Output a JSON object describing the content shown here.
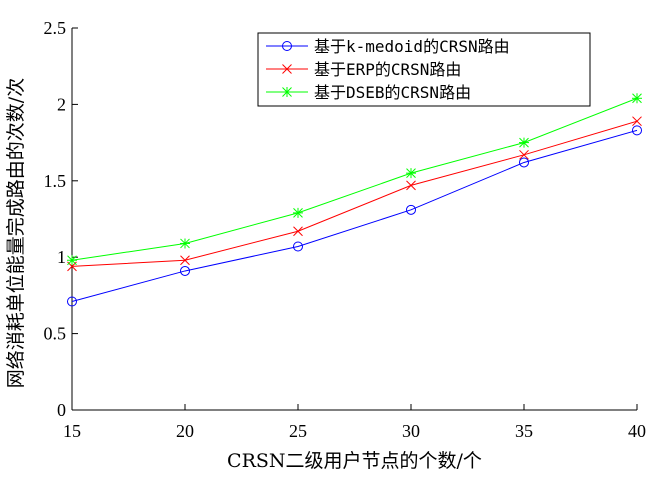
{
  "chart_data": {
    "type": "line",
    "xlabel": "CRSN二级用户节点的个数/个",
    "ylabel": "网络消耗单位能量完成路由的次数/次",
    "xlim": [
      15,
      40
    ],
    "ylim": [
      0,
      2.5
    ],
    "x": [
      15,
      20,
      25,
      30,
      35,
      40
    ],
    "x_ticks": [
      "15",
      "20",
      "25",
      "30",
      "35",
      "40"
    ],
    "y_ticks": [
      {
        "value": 0,
        "label": "0"
      },
      {
        "value": 0.5,
        "label": "0.5"
      },
      {
        "value": 1,
        "label": "1"
      },
      {
        "value": 1.5,
        "label": "1.5"
      },
      {
        "value": 2,
        "label": "2"
      },
      {
        "value": 2.5,
        "label": "2.5"
      }
    ],
    "grid": false,
    "legend_position": "top-right",
    "series": [
      {
        "name": "基于k-medoid的CRSN路由",
        "color": "#0000ff",
        "marker": "circle",
        "values": [
          0.71,
          0.91,
          1.07,
          1.31,
          1.62,
          1.83
        ]
      },
      {
        "name": "基于ERP的CRSN路由",
        "color": "#ff0000",
        "marker": "x",
        "values": [
          0.94,
          0.98,
          1.17,
          1.47,
          1.67,
          1.89
        ]
      },
      {
        "name": "基于DSEB的CRSN路由",
        "color": "#00ff00",
        "marker": "star",
        "values": [
          0.98,
          1.09,
          1.29,
          1.55,
          1.75,
          2.04
        ]
      }
    ]
  }
}
